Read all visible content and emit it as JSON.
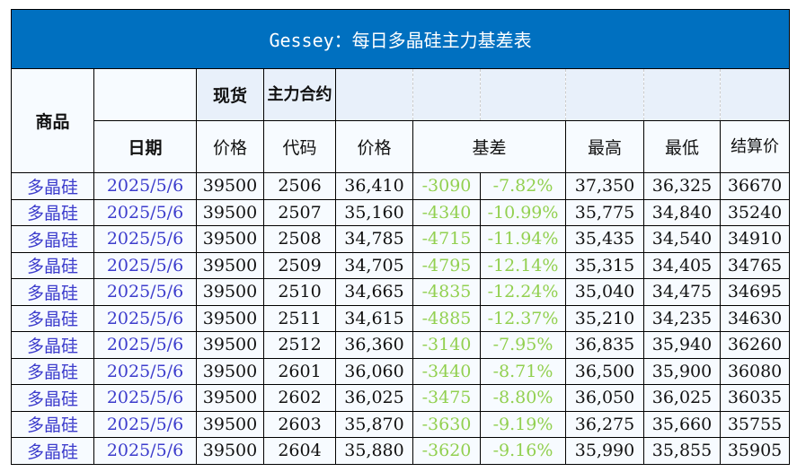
{
  "title": "Gessey：每日多晶硅主力基差表",
  "headers": {
    "product": "商品",
    "spot": "现货",
    "main_contract": "主力合约",
    "date": "日期",
    "spot_price": "价格",
    "code": "代码",
    "price": "价格",
    "basis": "基差",
    "high": "最高",
    "low": "最低",
    "settle": "结算价"
  },
  "colors": {
    "title_bg": "#0070c0",
    "basis_text": "#92d050",
    "link_text": "#3c3ccc"
  },
  "rows": [
    {
      "product": "多晶硅",
      "date": "2025/5/6",
      "spot": "39500",
      "code": "2506",
      "price": "36,410",
      "basis": "-3090",
      "basis_pct": "-7.82%",
      "high": "37,350",
      "low": "36,325",
      "settle": "36670"
    },
    {
      "product": "多晶硅",
      "date": "2025/5/6",
      "spot": "39500",
      "code": "2507",
      "price": "35,160",
      "basis": "-4340",
      "basis_pct": "-10.99%",
      "high": "35,775",
      "low": "34,840",
      "settle": "35240"
    },
    {
      "product": "多晶硅",
      "date": "2025/5/6",
      "spot": "39500",
      "code": "2508",
      "price": "34,785",
      "basis": "-4715",
      "basis_pct": "-11.94%",
      "high": "35,435",
      "low": "34,540",
      "settle": "34910"
    },
    {
      "product": "多晶硅",
      "date": "2025/5/6",
      "spot": "39500",
      "code": "2509",
      "price": "34,705",
      "basis": "-4795",
      "basis_pct": "-12.14%",
      "high": "35,315",
      "low": "34,405",
      "settle": "34765"
    },
    {
      "product": "多晶硅",
      "date": "2025/5/6",
      "spot": "39500",
      "code": "2510",
      "price": "34,665",
      "basis": "-4835",
      "basis_pct": "-12.24%",
      "high": "35,040",
      "low": "34,475",
      "settle": "34695"
    },
    {
      "product": "多晶硅",
      "date": "2025/5/6",
      "spot": "39500",
      "code": "2511",
      "price": "34,615",
      "basis": "-4885",
      "basis_pct": "-12.37%",
      "high": "35,210",
      "low": "34,235",
      "settle": "34630"
    },
    {
      "product": "多晶硅",
      "date": "2025/5/6",
      "spot": "39500",
      "code": "2512",
      "price": "36,360",
      "basis": "-3140",
      "basis_pct": "-7.95%",
      "high": "36,835",
      "low": "35,940",
      "settle": "36260"
    },
    {
      "product": "多晶硅",
      "date": "2025/5/6",
      "spot": "39500",
      "code": "2601",
      "price": "36,060",
      "basis": "-3440",
      "basis_pct": "-8.71%",
      "high": "36,500",
      "low": "35,900",
      "settle": "36080"
    },
    {
      "product": "多晶硅",
      "date": "2025/5/6",
      "spot": "39500",
      "code": "2602",
      "price": "36,025",
      "basis": "-3475",
      "basis_pct": "-8.80%",
      "high": "36,050",
      "low": "36,025",
      "settle": "36035"
    },
    {
      "product": "多晶硅",
      "date": "2025/5/6",
      "spot": "39500",
      "code": "2603",
      "price": "35,870",
      "basis": "-3630",
      "basis_pct": "-9.19%",
      "high": "36,275",
      "low": "35,660",
      "settle": "35755"
    },
    {
      "product": "多晶硅",
      "date": "2025/5/6",
      "spot": "39500",
      "code": "2604",
      "price": "35,880",
      "basis": "-3620",
      "basis_pct": "-9.16%",
      "high": "35,990",
      "low": "35,855",
      "settle": "35905"
    }
  ]
}
